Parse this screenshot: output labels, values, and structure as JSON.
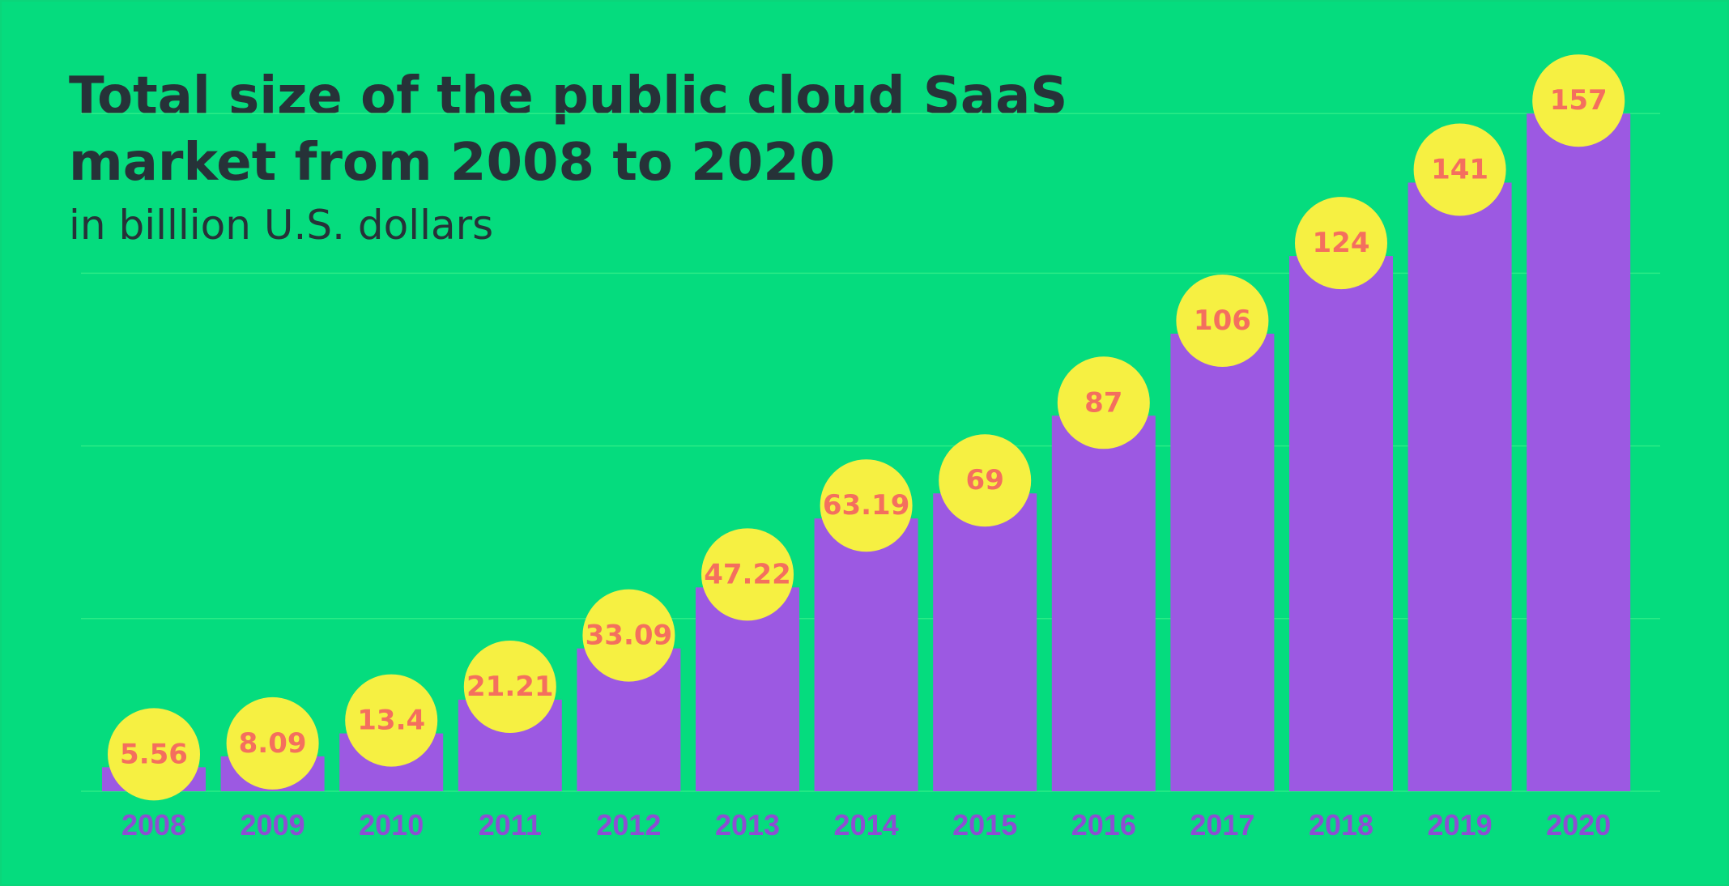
{
  "header": {
    "title_line1": "Total size of the public cloud SaaS",
    "title_line2": "market from 2008 to 2020",
    "subtitle": "in billlion U.S. dollars"
  },
  "colors": {
    "background": "#05DC7E",
    "bar": "#9C59E2",
    "bubble": "#F6F042",
    "value_text": "#F46F5E",
    "tick_text": "#8C4FD2",
    "title_text": "#263238",
    "gridline": "#2BEB86"
  },
  "chart_data": {
    "type": "bar",
    "title": "Total size of the public cloud SaaS market from 2008 to 2020",
    "subtitle": "in billlion U.S. dollars",
    "xlabel": "",
    "ylabel": "",
    "categories": [
      "2008",
      "2009",
      "2010",
      "2011",
      "2012",
      "2013",
      "2014",
      "2015",
      "2016",
      "2017",
      "2018",
      "2019",
      "2020"
    ],
    "values": [
      5.56,
      8.09,
      13.4,
      21.21,
      33.09,
      47.22,
      63.19,
      69,
      87,
      106,
      124,
      141,
      157
    ],
    "value_labels": [
      "5.56",
      "8.09",
      "13.4",
      "21.21",
      "33.09",
      "47.22",
      "63.19",
      "69",
      "87",
      "106",
      "124",
      "141",
      "157"
    ],
    "ylim": [
      0,
      160
    ],
    "grid": true,
    "legend": "none"
  }
}
